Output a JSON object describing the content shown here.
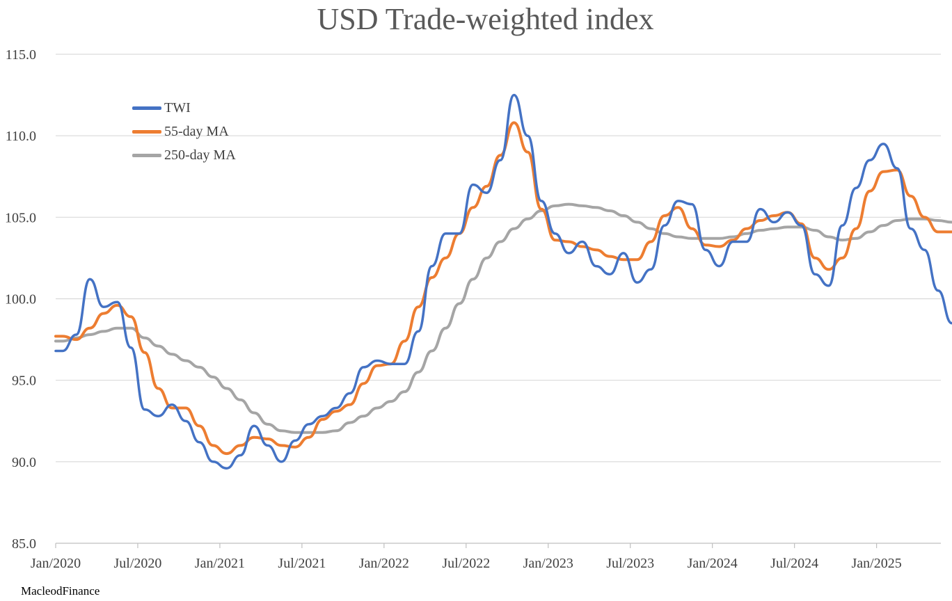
{
  "chart_data": {
    "type": "line",
    "title": "USD Trade-weighted index",
    "ylim": [
      85.0,
      115.0
    ],
    "y_ticks": [
      "115.0",
      "110.0",
      "105.0",
      "100.0",
      "95.0",
      "90.0",
      "85.0"
    ],
    "x_ticks": [
      "Jan/2020",
      "Jul/2020",
      "Jan/2021",
      "Jul/2021",
      "Jan/2022",
      "Jul/2022",
      "Jan/2023",
      "Jul/2023",
      "Jan/2024",
      "Jul/2024",
      "Jan/2025"
    ],
    "xlim": [
      "Jan/2020",
      "Jun/2025"
    ],
    "grid": true,
    "legend_position": "top-left",
    "series": [
      {
        "name": "TWI",
        "color": "#4472C4",
        "x": [
          "2020-01",
          "2020-02",
          "2020-03",
          "2020-04",
          "2020-05",
          "2020-06",
          "2020-07",
          "2020-08",
          "2020-09",
          "2020-10",
          "2020-11",
          "2020-12",
          "2021-01",
          "2021-02",
          "2021-03",
          "2021-04",
          "2021-05",
          "2021-06",
          "2021-07",
          "2021-08",
          "2021-09",
          "2021-10",
          "2021-11",
          "2021-12",
          "2022-01",
          "2022-02",
          "2022-03",
          "2022-04",
          "2022-05",
          "2022-06",
          "2022-07",
          "2022-08",
          "2022-09",
          "2022-10",
          "2022-11",
          "2022-12",
          "2023-01",
          "2023-02",
          "2023-03",
          "2023-04",
          "2023-05",
          "2023-06",
          "2023-07",
          "2023-08",
          "2023-09",
          "2023-10",
          "2023-11",
          "2023-12",
          "2024-01",
          "2024-02",
          "2024-03",
          "2024-04",
          "2024-05",
          "2024-06",
          "2024-07",
          "2024-08",
          "2024-09",
          "2024-10",
          "2024-11",
          "2024-12",
          "2025-01",
          "2025-02",
          "2025-03",
          "2025-04",
          "2025-05",
          "2025-06"
        ],
        "values": [
          96.8,
          97.8,
          101.2,
          99.5,
          99.8,
          97.0,
          93.2,
          92.8,
          93.5,
          92.5,
          91.2,
          90.0,
          89.6,
          90.4,
          92.2,
          91.0,
          90.0,
          91.3,
          92.3,
          92.8,
          93.3,
          94.2,
          95.8,
          96.2,
          96.0,
          96.0,
          98.0,
          102.0,
          104.0,
          104.0,
          107.0,
          106.5,
          108.5,
          112.5,
          110.0,
          106.0,
          104.0,
          102.8,
          103.5,
          102.0,
          101.5,
          102.8,
          101.0,
          101.8,
          104.5,
          106.0,
          105.8,
          103.0,
          102.0,
          103.5,
          103.5,
          105.5,
          104.7,
          105.3,
          104.5,
          101.5,
          100.8,
          104.5,
          106.8,
          108.5,
          109.5,
          108.0,
          104.3,
          103.0,
          100.5,
          98.5
        ]
      },
      {
        "name": "55-day MA",
        "color": "#ED7D31",
        "x": [
          "2020-01",
          "2020-02",
          "2020-03",
          "2020-04",
          "2020-05",
          "2020-06",
          "2020-07",
          "2020-08",
          "2020-09",
          "2020-10",
          "2020-11",
          "2020-12",
          "2021-01",
          "2021-02",
          "2021-03",
          "2021-04",
          "2021-05",
          "2021-06",
          "2021-07",
          "2021-08",
          "2021-09",
          "2021-10",
          "2021-11",
          "2021-12",
          "2022-01",
          "2022-02",
          "2022-03",
          "2022-04",
          "2022-05",
          "2022-06",
          "2022-07",
          "2022-08",
          "2022-09",
          "2022-10",
          "2022-11",
          "2022-12",
          "2023-01",
          "2023-02",
          "2023-03",
          "2023-04",
          "2023-05",
          "2023-06",
          "2023-07",
          "2023-08",
          "2023-09",
          "2023-10",
          "2023-11",
          "2023-12",
          "2024-01",
          "2024-02",
          "2024-03",
          "2024-04",
          "2024-05",
          "2024-06",
          "2024-07",
          "2024-08",
          "2024-09",
          "2024-10",
          "2024-11",
          "2024-12",
          "2025-01",
          "2025-02",
          "2025-03",
          "2025-04",
          "2025-05",
          "2025-06"
        ],
        "values": [
          97.7,
          97.5,
          98.2,
          99.1,
          99.6,
          98.9,
          96.7,
          94.5,
          93.3,
          93.3,
          92.2,
          91.0,
          90.5,
          91.0,
          91.5,
          91.4,
          91.0,
          90.9,
          91.5,
          92.6,
          93.1,
          93.5,
          94.8,
          95.9,
          96.0,
          97.4,
          99.5,
          101.3,
          102.5,
          104.0,
          105.6,
          106.9,
          108.8,
          110.8,
          109.0,
          105.5,
          103.6,
          103.5,
          103.2,
          103.0,
          102.6,
          102.4,
          102.4,
          103.5,
          105.1,
          105.6,
          104.3,
          103.3,
          103.2,
          103.6,
          104.3,
          104.8,
          105.1,
          105.3,
          104.6,
          102.5,
          101.8,
          102.5,
          104.3,
          106.6,
          107.8,
          107.9,
          106.3,
          105.0,
          104.1,
          104.1
        ]
      },
      {
        "name": "250-day MA",
        "color": "#A5A5A5",
        "x": [
          "2020-01",
          "2020-02",
          "2020-03",
          "2020-04",
          "2020-05",
          "2020-06",
          "2020-07",
          "2020-08",
          "2020-09",
          "2020-10",
          "2020-11",
          "2020-12",
          "2021-01",
          "2021-02",
          "2021-03",
          "2021-04",
          "2021-05",
          "2021-06",
          "2021-07",
          "2021-08",
          "2021-09",
          "2021-10",
          "2021-11",
          "2021-12",
          "2022-01",
          "2022-02",
          "2022-03",
          "2022-04",
          "2022-05",
          "2022-06",
          "2022-07",
          "2022-08",
          "2022-09",
          "2022-10",
          "2022-11",
          "2022-12",
          "2023-01",
          "2023-02",
          "2023-03",
          "2023-04",
          "2023-05",
          "2023-06",
          "2023-07",
          "2023-08",
          "2023-09",
          "2023-10",
          "2023-11",
          "2023-12",
          "2024-01",
          "2024-02",
          "2024-03",
          "2024-04",
          "2024-05",
          "2024-06",
          "2024-07",
          "2024-08",
          "2024-09",
          "2024-10",
          "2024-11",
          "2024-12",
          "2025-01",
          "2025-02",
          "2025-03",
          "2025-04",
          "2025-05",
          "2025-06"
        ],
        "values": [
          97.4,
          97.6,
          97.8,
          98.0,
          98.2,
          98.2,
          97.6,
          97.1,
          96.6,
          96.2,
          95.8,
          95.2,
          94.5,
          93.8,
          93.0,
          92.3,
          91.9,
          91.8,
          91.8,
          91.8,
          91.9,
          92.4,
          92.8,
          93.3,
          93.7,
          94.3,
          95.5,
          96.8,
          98.2,
          99.7,
          101.2,
          102.5,
          103.5,
          104.3,
          104.9,
          105.4,
          105.7,
          105.8,
          105.7,
          105.6,
          105.4,
          105.1,
          104.7,
          104.3,
          104.0,
          103.8,
          103.7,
          103.7,
          103.7,
          103.8,
          104.0,
          104.2,
          104.3,
          104.4,
          104.4,
          104.2,
          103.8,
          103.6,
          103.7,
          104.1,
          104.5,
          104.8,
          104.9,
          104.9,
          104.8,
          104.7
        ]
      }
    ]
  },
  "footer": {
    "credit": "MacleodFinance"
  }
}
